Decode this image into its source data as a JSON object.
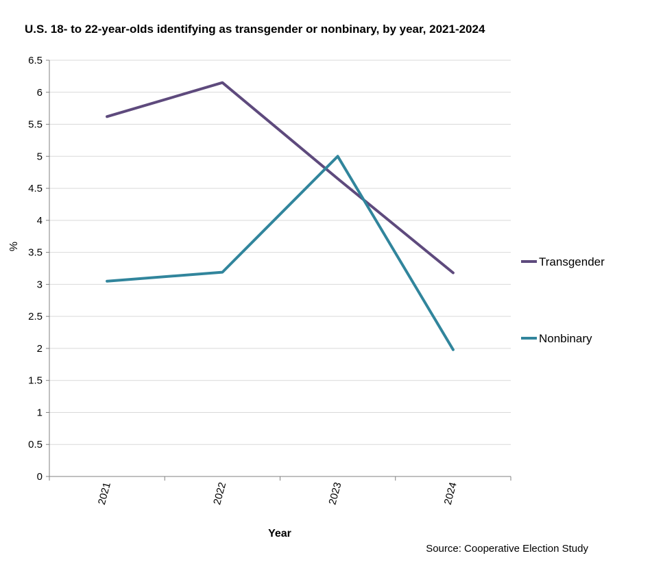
{
  "chart_data": {
    "type": "line",
    "title": "U.S. 18- to 22-year-olds identifying as transgender or nonbinary, by year, 2021-2024",
    "xlabel": "Year",
    "ylabel": "%",
    "categories": [
      "2021",
      "2022",
      "2023",
      "2024"
    ],
    "ylim": [
      0,
      6.5
    ],
    "yticks": [
      0,
      0.5,
      1,
      1.5,
      2,
      2.5,
      3,
      3.5,
      4,
      4.5,
      5,
      5.5,
      6,
      6.5
    ],
    "ytick_labels": [
      "0",
      "0.5",
      "1",
      "1.5",
      "2",
      "2.5",
      "3",
      "3.5",
      "4",
      "4.5",
      "5",
      "5.5",
      "6",
      "6.5"
    ],
    "grid": true,
    "legend_position": "right",
    "series": [
      {
        "name": "Transgender",
        "color": "#5e4a7d",
        "values": [
          5.62,
          6.15,
          4.65,
          3.18
        ]
      },
      {
        "name": "Nonbinary",
        "color": "#31859c",
        "values": [
          3.05,
          3.19,
          5.0,
          1.98
        ]
      }
    ],
    "source": "Source: Cooperative Election Study"
  }
}
